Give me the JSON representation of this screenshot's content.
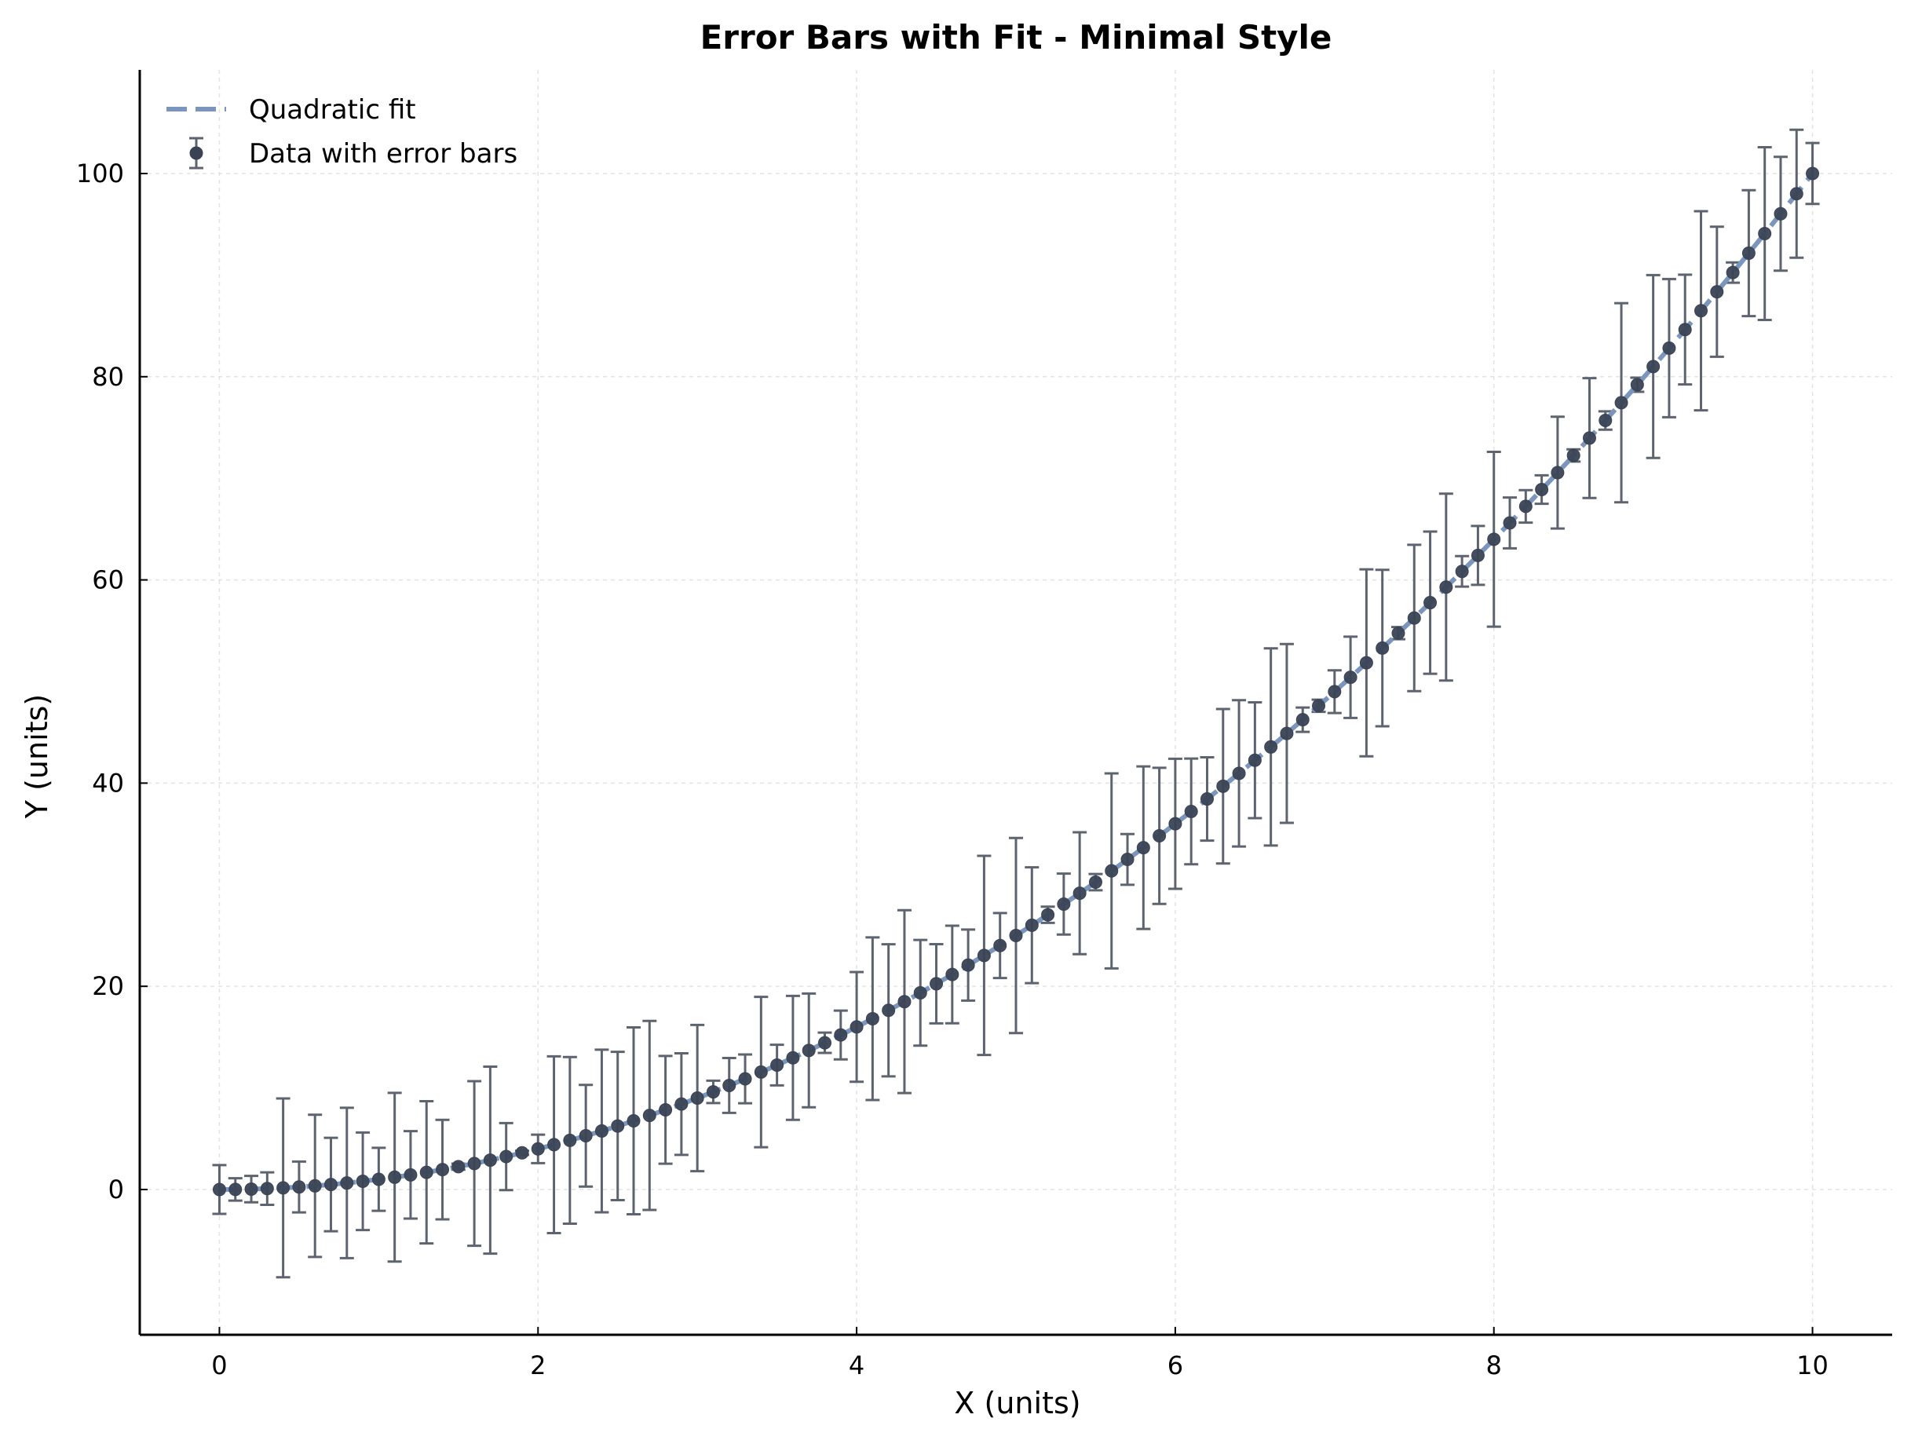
{
  "chart_data": {
    "type": "scatter",
    "title": "Error Bars with Fit - Minimal Style",
    "xlabel": "X (units)",
    "ylabel": "Y (units)",
    "xlim": [
      -0.5,
      10.5
    ],
    "ylim": [
      -14.3,
      110.2
    ],
    "xticks": [
      0,
      2,
      4,
      6,
      8,
      10
    ],
    "yticks": [
      0,
      20,
      40,
      60,
      80,
      100
    ],
    "grid": true,
    "legend_position": "top-left",
    "colors": {
      "fit": "#7b96bd",
      "data": "#3a4354",
      "errorbar": "#5d646f"
    },
    "fit": {
      "name": "Quadratic fit",
      "style": "dashed",
      "x": [
        0,
        10
      ],
      "equation": "y = x^2"
    },
    "series": [
      {
        "name": "Data with error bars",
        "x": [
          0.0,
          0.1,
          0.2,
          0.3,
          0.4,
          0.5,
          0.6,
          0.7,
          0.8,
          0.9,
          1.0,
          1.1,
          1.2,
          1.3,
          1.4,
          1.5,
          1.6,
          1.7,
          1.8,
          1.9,
          2.0,
          2.1,
          2.2,
          2.3,
          2.4,
          2.5,
          2.6,
          2.7,
          2.8,
          2.9,
          3.0,
          3.1,
          3.2,
          3.3,
          3.4,
          3.5,
          3.6,
          3.7,
          3.8,
          3.9,
          4.0,
          4.1,
          4.2,
          4.3,
          4.4,
          4.5,
          4.6,
          4.7,
          4.8,
          4.9,
          5.0,
          5.1,
          5.2,
          5.3,
          5.4,
          5.5,
          5.6,
          5.7,
          5.8,
          5.9,
          6.0,
          6.1,
          6.2,
          6.3,
          6.4,
          6.5,
          6.6,
          6.7,
          6.8,
          6.9,
          7.0,
          7.1,
          7.2,
          7.3,
          7.4,
          7.5,
          7.6,
          7.7,
          7.8,
          7.9,
          8.0,
          8.1,
          8.2,
          8.3,
          8.4,
          8.5,
          8.6,
          8.7,
          8.8,
          8.9,
          9.0,
          9.1,
          9.2,
          9.3,
          9.4,
          9.5,
          9.6,
          9.7,
          9.8,
          9.9,
          10.0
        ],
        "y": [
          0.0,
          0.01,
          0.04,
          0.09,
          0.16,
          0.25,
          0.36,
          0.49,
          0.64,
          0.81,
          1.0,
          1.21,
          1.44,
          1.69,
          1.96,
          2.25,
          2.56,
          2.89,
          3.24,
          3.61,
          4.0,
          4.41,
          4.84,
          5.29,
          5.76,
          6.25,
          6.76,
          7.29,
          7.84,
          8.41,
          9.0,
          9.61,
          10.24,
          10.89,
          11.56,
          12.25,
          12.96,
          13.69,
          14.44,
          15.21,
          16.0,
          16.81,
          17.64,
          18.49,
          19.36,
          20.25,
          21.16,
          22.09,
          23.04,
          24.01,
          25.0,
          26.01,
          27.04,
          28.09,
          29.16,
          30.25,
          31.36,
          32.49,
          33.64,
          34.81,
          36.0,
          37.21,
          38.44,
          39.69,
          40.96,
          42.25,
          43.56,
          44.89,
          46.24,
          47.61,
          49.0,
          50.41,
          51.84,
          53.29,
          54.76,
          56.25,
          57.76,
          59.29,
          60.84,
          62.41,
          64.0,
          65.61,
          67.24,
          68.89,
          70.56,
          72.25,
          73.96,
          75.69,
          77.44,
          79.21,
          81.0,
          82.81,
          84.64,
          86.49,
          88.36,
          90.25,
          92.16,
          94.09,
          96.04,
          98.01,
          100.0
        ],
        "yerr": [
          2.4,
          1.1,
          1.3,
          1.6,
          8.8,
          2.5,
          7.0,
          4.6,
          7.4,
          4.8,
          3.1,
          8.3,
          4.3,
          7.0,
          4.9,
          0.3,
          8.1,
          9.2,
          3.3,
          0.2,
          1.4,
          8.7,
          8.2,
          5.0,
          8.0,
          7.3,
          9.2,
          9.3,
          5.3,
          5.0,
          7.2,
          1.1,
          2.7,
          2.4,
          7.4,
          2.0,
          6.1,
          5.6,
          1.0,
          2.4,
          5.4,
          8.0,
          6.5,
          9.0,
          5.2,
          3.9,
          4.8,
          3.5,
          9.8,
          3.2,
          9.6,
          5.7,
          0.8,
          3.0,
          6.0,
          0.8,
          9.6,
          2.5,
          8.0,
          6.7,
          6.4,
          5.2,
          4.1,
          7.6,
          7.2,
          5.7,
          9.7,
          8.8,
          1.2,
          0.6,
          2.1,
          4.0,
          9.2,
          7.7,
          0.6,
          7.2,
          7.0,
          9.2,
          1.5,
          2.9,
          8.6,
          2.5,
          1.6,
          1.4,
          5.5,
          0.6,
          5.9,
          0.9,
          9.8,
          0.7,
          9.0,
          6.8,
          5.4,
          9.8,
          6.4,
          1.0,
          6.2,
          8.5,
          5.6,
          6.3,
          3.0
        ]
      }
    ]
  }
}
